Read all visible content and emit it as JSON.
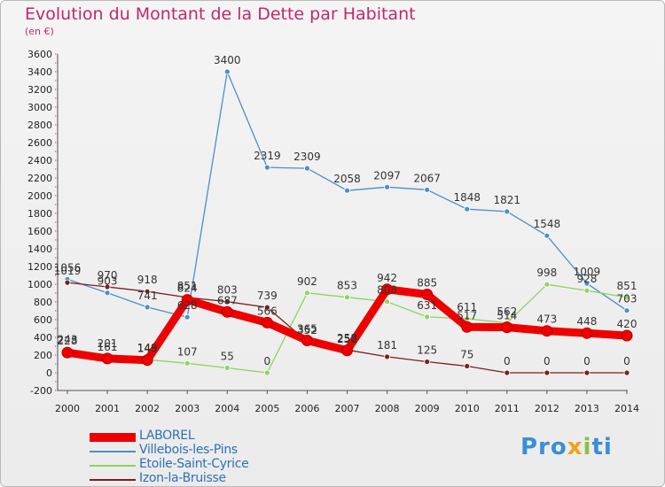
{
  "title": "Evolution du Montant de la Dette par Habitant",
  "subtitle": "(en €)",
  "logo": {
    "parts": [
      "Pro",
      "x",
      "i",
      "ti"
    ]
  },
  "chart_data": {
    "type": "line",
    "title": "Evolution du Montant de la Dette par Habitant",
    "ylabel": "(en €)",
    "x": [
      "2000",
      "2001",
      "2002",
      "2003",
      "2004",
      "2005",
      "2006",
      "2007",
      "2008",
      "2009",
      "2010",
      "2011",
      "2012",
      "2013",
      "2014"
    ],
    "ylim": [
      -200,
      3600
    ],
    "yticks": [
      -200,
      0,
      200,
      400,
      600,
      800,
      1000,
      1200,
      1400,
      1600,
      1800,
      2000,
      2200,
      2400,
      2600,
      2800,
      3000,
      3200,
      3400,
      3600
    ],
    "grid": false,
    "legend_position": "bottom-left",
    "series": [
      {
        "name": "LABOREL",
        "color": "#ee0000",
        "values": [
          228,
          161,
          143,
          824,
          687,
          566,
          365,
          252,
          942,
          885,
          517,
          514,
          473,
          448,
          420
        ]
      },
      {
        "name": "Villebois-les-Pins",
        "color": "#4a90c8",
        "values": [
          1056,
          903,
          741,
          628,
          3400,
          2319,
          2309,
          2058,
          2097,
          2067,
          1848,
          1821,
          1548,
          1009,
          703
        ]
      },
      {
        "name": "Etoile-Saint-Cyrice",
        "color": "#8ed35e",
        "values": [
          243,
          201,
          149,
          107,
          55,
          0,
          902,
          853,
          803,
          631,
          611,
          562,
          998,
          928,
          851
        ]
      },
      {
        "name": "Izon-la-Bruisse",
        "color": "#7b1f1f",
        "values": [
          1019,
          970,
          918,
          851,
          803,
          739,
          352,
          258,
          181,
          125,
          75,
          0,
          0,
          0,
          0
        ]
      }
    ]
  }
}
